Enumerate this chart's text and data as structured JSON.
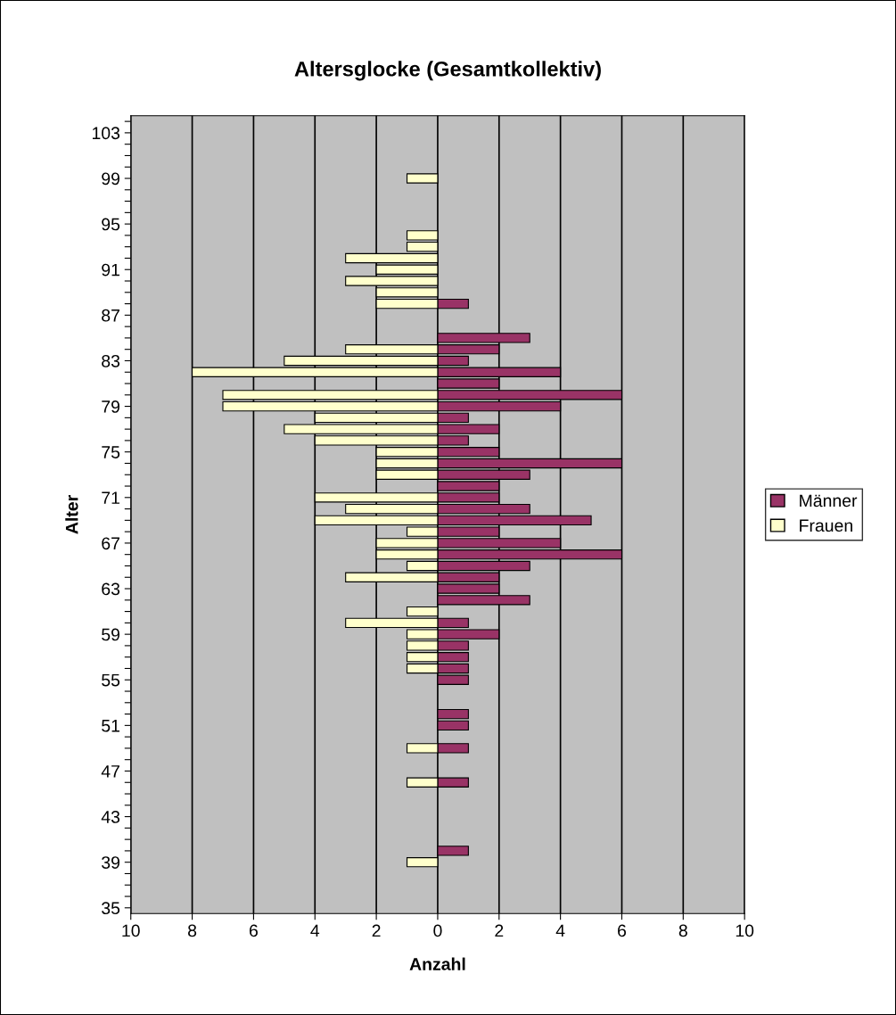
{
  "chart_data": {
    "type": "bar",
    "orientation": "horizontal",
    "title": "Altersglocke (Gesamtkollektiv)",
    "xlabel": "Anzahl",
    "ylabel": "Alter",
    "categories": [
      null,
      "103",
      null,
      null,
      null,
      "99",
      null,
      null,
      null,
      "95",
      null,
      null,
      null,
      "91",
      null,
      null,
      null,
      "87",
      null,
      null,
      null,
      "83",
      null,
      null,
      null,
      "79",
      null,
      null,
      null,
      "75",
      null,
      null,
      null,
      "71",
      null,
      null,
      null,
      "67",
      null,
      null,
      null,
      "63",
      null,
      null,
      null,
      "59",
      null,
      null,
      null,
      "55",
      null,
      null,
      null,
      "51",
      null,
      null,
      null,
      "47",
      null,
      null,
      null,
      "43",
      null,
      null,
      null,
      "39",
      null,
      null,
      null,
      "35"
    ],
    "series": [
      {
        "name": "Männer",
        "color": "#993366",
        "values": [
          null,
          null,
          null,
          null,
          null,
          null,
          null,
          null,
          null,
          null,
          null,
          null,
          null,
          null,
          null,
          null,
          1,
          null,
          null,
          3,
          2,
          1,
          4,
          2,
          6,
          4,
          1,
          2,
          1,
          2,
          6,
          3,
          2,
          2,
          3,
          5,
          2,
          4,
          6,
          3,
          2,
          2,
          3,
          null,
          1,
          2,
          1,
          1,
          1,
          1,
          null,
          null,
          1,
          1,
          null,
          1,
          null,
          null,
          1,
          null,
          null,
          null,
          null,
          null,
          1,
          null,
          null,
          null,
          null,
          null
        ]
      },
      {
        "name": "Frauen",
        "color": "#ffffcc",
        "values": [
          null,
          null,
          null,
          null,
          null,
          -1,
          null,
          null,
          null,
          null,
          -1,
          -1,
          -3,
          -2,
          -3,
          -2,
          -2,
          null,
          null,
          null,
          -3,
          -5,
          -8,
          null,
          -7,
          -7,
          -4,
          -5,
          -4,
          -2,
          -2,
          -2,
          null,
          -4,
          -3,
          -4,
          -1,
          -2,
          -2,
          -1,
          -3,
          null,
          null,
          -1,
          -3,
          -1,
          -1,
          -1,
          -1,
          null,
          null,
          null,
          null,
          null,
          null,
          -1,
          null,
          null,
          -1,
          null,
          null,
          null,
          null,
          null,
          null,
          -1,
          null,
          null,
          null,
          null
        ]
      }
    ],
    "xlim": [
      -10,
      10
    ],
    "xticks": [
      {
        "value": -10,
        "label": "10"
      },
      {
        "value": -8,
        "label": "8"
      },
      {
        "value": -6,
        "label": "6"
      },
      {
        "value": -4,
        "label": "4"
      },
      {
        "value": -2,
        "label": "2"
      },
      0,
      2,
      4,
      6,
      8,
      10
    ],
    "grid": "x",
    "legend": "right"
  }
}
